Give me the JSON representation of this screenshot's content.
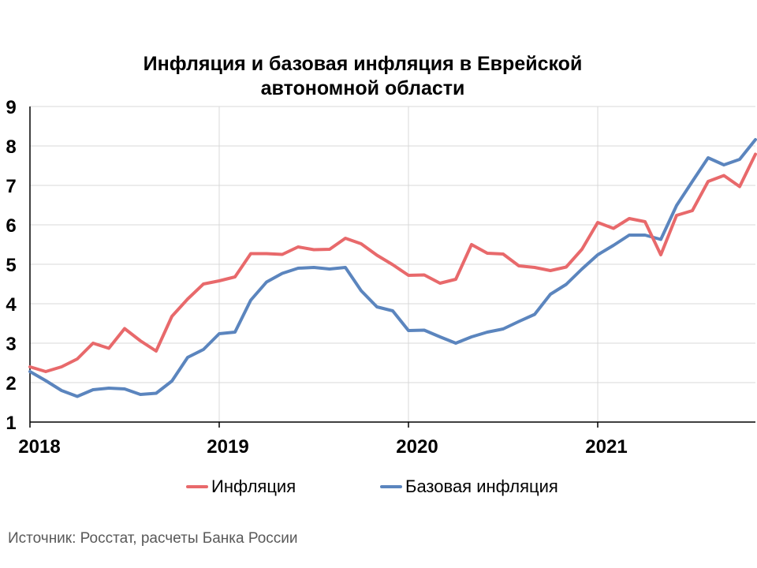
{
  "chart_data": {
    "type": "line",
    "title": [
      "Инфляция и базовая инфляция в Еврейской",
      "автономной области"
    ],
    "xlabel": "",
    "ylabel": "",
    "ylim": [
      1,
      9
    ],
    "yticks": [
      "1",
      "2",
      "3",
      "4",
      "5",
      "6",
      "7",
      "8",
      "9"
    ],
    "xticks": [
      "2018",
      "2019",
      "2020",
      "2021"
    ],
    "grid": true,
    "legend_position": "bottom",
    "x_start": "2018-01",
    "x_end": "2021-09",
    "series": [
      {
        "name": "Инфляция",
        "color": "#E8696B",
        "values": [
          2.4,
          2.28,
          2.4,
          2.6,
          3.0,
          2.87,
          3.37,
          3.06,
          2.8,
          3.68,
          4.12,
          4.5,
          4.58,
          4.68,
          5.27,
          5.27,
          5.25,
          5.44,
          5.37,
          5.38,
          5.66,
          5.52,
          5.23,
          4.99,
          4.72,
          4.73,
          4.52,
          4.62,
          5.5,
          5.28,
          5.26,
          4.96,
          4.92,
          4.84,
          4.93,
          5.38,
          6.06,
          5.91,
          6.16,
          6.08,
          5.24,
          6.24,
          6.36,
          7.1,
          7.25,
          6.97,
          7.79
        ]
      },
      {
        "name": "Базовая инфляция",
        "color": "#5B85BE",
        "values": [
          2.28,
          2.05,
          1.8,
          1.65,
          1.82,
          1.86,
          1.84,
          1.7,
          1.73,
          2.04,
          2.64,
          2.84,
          3.24,
          3.28,
          4.09,
          4.55,
          4.77,
          4.9,
          4.92,
          4.88,
          4.92,
          4.33,
          3.92,
          3.82,
          3.32,
          3.33,
          3.16,
          3.0,
          3.16,
          3.28,
          3.36,
          3.55,
          3.73,
          4.24,
          4.49,
          4.88,
          5.24,
          5.48,
          5.74,
          5.74,
          5.63,
          6.49,
          7.1,
          7.7,
          7.52,
          7.66,
          8.16
        ]
      }
    ]
  },
  "source": "Источник: Росстат, расчеты Банка России"
}
